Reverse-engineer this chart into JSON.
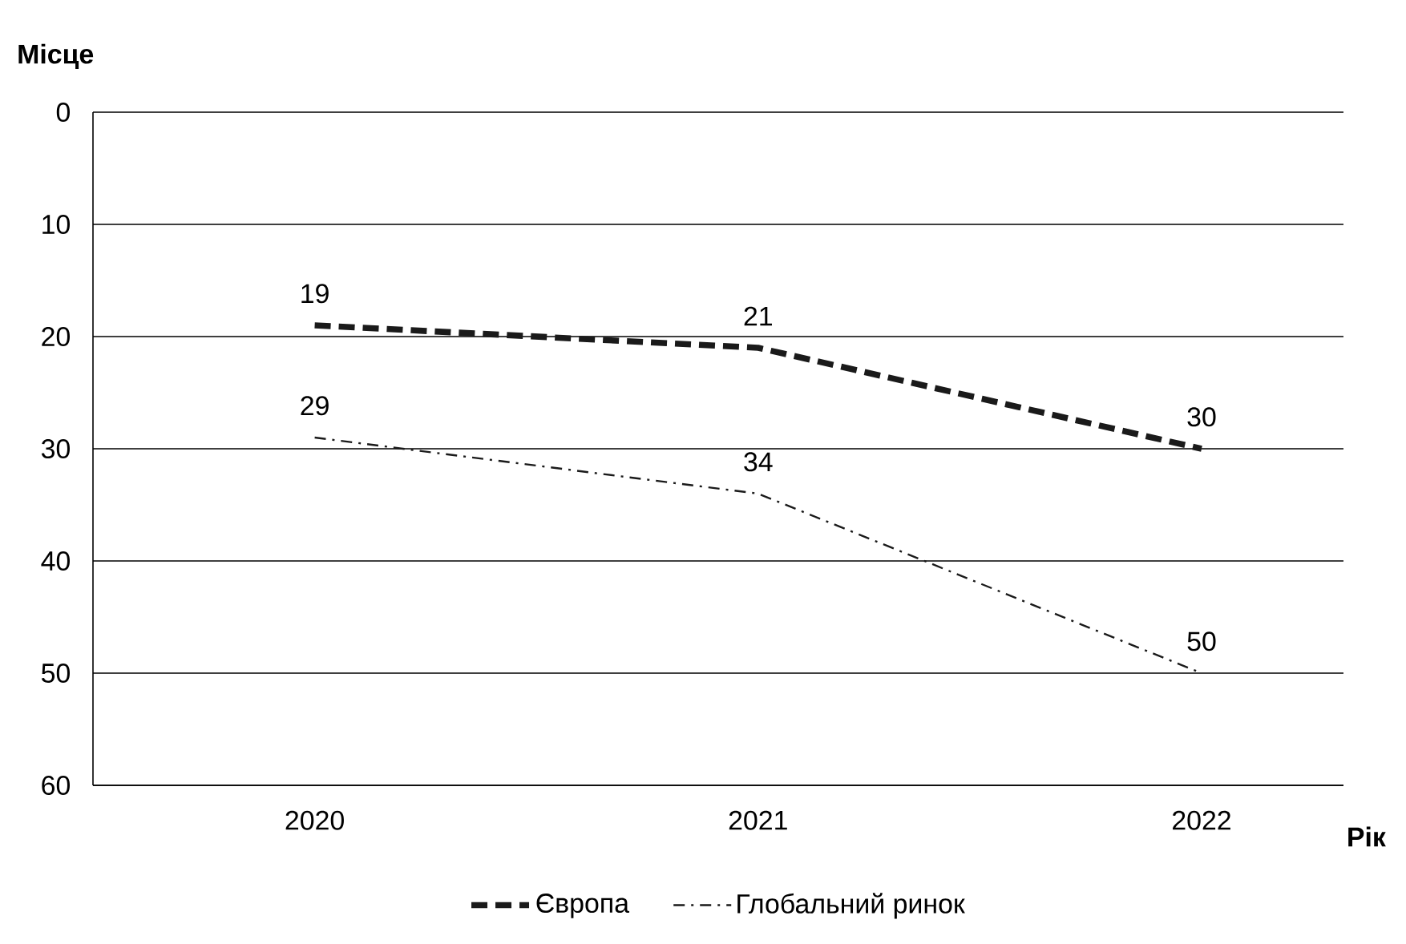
{
  "chart_data": {
    "type": "line",
    "ylabel": "Місце",
    "xlabel": "Рік",
    "categories": [
      "2020",
      "2021",
      "2022"
    ],
    "series": [
      {
        "name": "Європа",
        "color": "#1a1a1a",
        "line_style": "dashed",
        "values": [
          19,
          21,
          30
        ]
      },
      {
        "name": "Глобальний ринок",
        "color": "#1a1a1a",
        "line_style": "dashdot",
        "values": [
          29,
          34,
          50
        ]
      }
    ],
    "ylim": [
      60,
      0
    ],
    "yticks": [
      0,
      10,
      20,
      30,
      40,
      50,
      60
    ],
    "grid": "y",
    "legend": "bottom",
    "data_labels": true,
    "marker": "none"
  }
}
